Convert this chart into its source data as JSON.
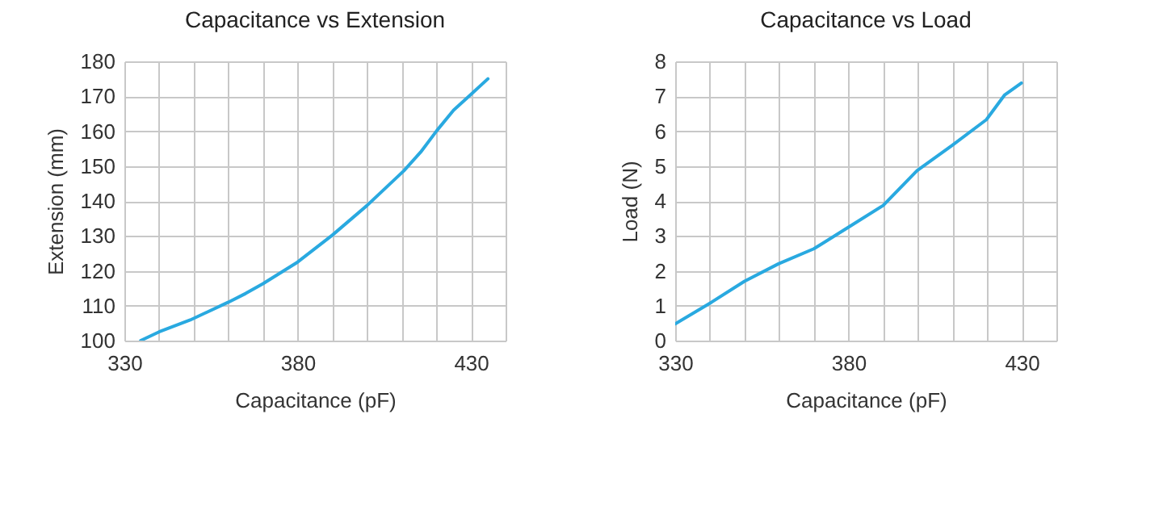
{
  "chart_data": [
    {
      "type": "line",
      "title": "Capacitance vs Extension",
      "xlabel": "Capacitance (pF)",
      "ylabel": "Extension (mm)",
      "x": [
        334.7,
        340,
        349,
        360,
        365,
        370,
        380,
        390,
        400,
        410.7,
        415.5,
        420.2,
        425,
        430,
        434.9
      ],
      "series": [
        {
          "color": "#29a9e0",
          "values": [
            100,
            102.5,
            105.9,
            111,
            113.5,
            116.3,
            122.5,
            130.2,
            138.7,
            148.7,
            154,
            160.2,
            166,
            170.5,
            175
          ]
        }
      ],
      "xlim": [
        330,
        440
      ],
      "xticks": [
        330,
        {
          "value": 340,
          "label": null
        },
        {
          "value": 350,
          "label": null
        },
        {
          "value": 360,
          "label": null
        },
        {
          "value": 370,
          "label": null
        },
        380,
        {
          "value": 390,
          "label": null
        },
        {
          "value": 400,
          "label": null
        },
        {
          "value": 410,
          "label": null
        },
        {
          "value": 420,
          "label": null
        },
        430,
        {
          "value": 440,
          "label": null
        }
      ],
      "ylim": [
        100,
        180
      ],
      "yticks": [
        100,
        110,
        120,
        130,
        140,
        150,
        160,
        170,
        180
      ],
      "grid": true,
      "marker": "none",
      "line_style": "solid"
    },
    {
      "type": "line",
      "title": "Capacitance vs Load",
      "xlabel": "Capacitance (pF)",
      "ylabel": "Load (N)",
      "x": [
        330,
        340.5,
        350,
        359.8,
        370,
        380,
        390,
        399.8,
        410,
        419.8,
        425,
        429.9
      ],
      "series": [
        {
          "color": "#29a9e0",
          "values": [
            0.48,
            1.1,
            1.7,
            2.2,
            2.63,
            3.25,
            3.87,
            4.87,
            5.6,
            6.33,
            7.03,
            7.38
          ]
        }
      ],
      "xlim": [
        330,
        440
      ],
      "xticks": [
        330,
        {
          "value": 340,
          "label": null
        },
        {
          "value": 350,
          "label": null
        },
        {
          "value": 360,
          "label": null
        },
        {
          "value": 370,
          "label": null
        },
        380,
        {
          "value": 390,
          "label": null
        },
        {
          "value": 400,
          "label": null
        },
        {
          "value": 410,
          "label": null
        },
        {
          "value": 420,
          "label": null
        },
        430,
        {
          "value": 440,
          "label": null
        }
      ],
      "ylim": [
        0,
        8
      ],
      "yticks": [
        0,
        1,
        2,
        3,
        4,
        5,
        6,
        7,
        8
      ],
      "grid": true,
      "marker": "none",
      "line_style": "solid"
    }
  ]
}
